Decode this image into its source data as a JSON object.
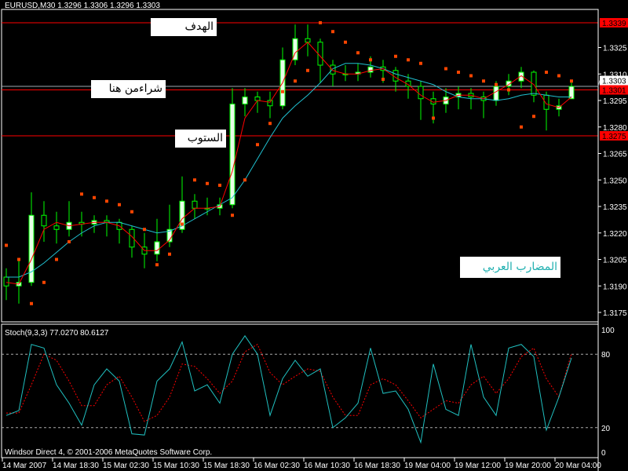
{
  "header": {
    "symbol_info": "EURUSD,M30  1.3296 1.3306 1.3296 1.3303"
  },
  "annotations": {
    "target": "الهدف",
    "buy_here": "شراءمن هنا",
    "stop": "الستوب",
    "watermark": "المضارب العربي"
  },
  "footer": {
    "copyright": "Windsor Direct 4, © 2001-2006 MetaQuotes Software Corp."
  },
  "colors": {
    "background": "#000000",
    "candle": "#00ff00",
    "fast_ma": "#ff0000",
    "slow_ma": "#20c0d0",
    "sar": "#ff4500",
    "level_line": "#ff0000",
    "bid_line": "#a0a8b0",
    "stoch_main": "#20c0c0",
    "stoch_signal": "#ff0000",
    "watermark_text": "#20b0b0"
  },
  "chart_data": [
    {
      "type": "candlestick",
      "title": "EURUSD,M30",
      "x_tick_labels": [
        "14 Mar 2007",
        "14 Mar 18:30",
        "15 Mar 02:30",
        "15 Mar 10:30",
        "15 Mar 18:30",
        "16 Mar 02:30",
        "16 Mar 10:30",
        "16 Mar 18:30",
        "19 Mar 04:00",
        "19 Mar 12:00",
        "19 Mar 20:00",
        "20 Mar 04:00"
      ],
      "y_tick_labels": [
        "1.3325",
        "1.3310",
        "1.3295",
        "1.3280",
        "1.3265",
        "1.3250",
        "1.3235",
        "1.3220",
        "1.3205",
        "1.3190",
        "1.3175"
      ],
      "ylim": [
        1.3168,
        1.3347
      ],
      "price_labels": [
        {
          "text": "1.3339",
          "value": 1.3339,
          "color": "#ff0000"
        },
        {
          "text": "1.3303",
          "value": 1.3303,
          "color": "#ffffff"
        },
        {
          "text": "1.3301",
          "value": 1.3301,
          "color": "#ff0000"
        },
        {
          "text": "1.3275",
          "value": 1.3275,
          "color": "#ff0000"
        }
      ],
      "horizontal_lines": [
        {
          "value": 1.3339,
          "color": "#ff0000"
        },
        {
          "value": 1.3303,
          "color": "#a0a8b0"
        },
        {
          "value": 1.3301,
          "color": "#ff0000"
        },
        {
          "value": 1.3275,
          "color": "#ff0000"
        }
      ],
      "ohlc": [
        [
          1.3195,
          1.32,
          1.3182,
          1.319
        ],
        [
          1.319,
          1.3205,
          1.318,
          1.3192
        ],
        [
          1.3192,
          1.3243,
          1.319,
          1.323
        ],
        [
          1.323,
          1.3238,
          1.3215,
          1.3224
        ],
        [
          1.3224,
          1.3232,
          1.3214,
          1.3222
        ],
        [
          1.3222,
          1.3238,
          1.3218,
          1.3226
        ],
        [
          1.3226,
          1.3232,
          1.3218,
          1.3225
        ],
        [
          1.3225,
          1.323,
          1.322,
          1.3227
        ],
        [
          1.3227,
          1.323,
          1.3218,
          1.3226
        ],
        [
          1.3226,
          1.3228,
          1.3214,
          1.3222
        ],
        [
          1.3222,
          1.3224,
          1.3206,
          1.3212
        ],
        [
          1.3212,
          1.322,
          1.32,
          1.3208
        ],
        [
          1.3208,
          1.3228,
          1.3204,
          1.3215
        ],
        [
          1.3215,
          1.3236,
          1.3212,
          1.3222
        ],
        [
          1.3222,
          1.3252,
          1.322,
          1.3238
        ],
        [
          1.3238,
          1.3242,
          1.3228,
          1.3234
        ],
        [
          1.3234,
          1.324,
          1.323,
          1.3234
        ],
        [
          1.3234,
          1.324,
          1.323,
          1.3236
        ],
        [
          1.3236,
          1.3302,
          1.3234,
          1.3293
        ],
        [
          1.3293,
          1.3302,
          1.3286,
          1.3297
        ],
        [
          1.3297,
          1.33,
          1.3288,
          1.3295
        ],
        [
          1.3295,
          1.33,
          1.3285,
          1.3292
        ],
        [
          1.3292,
          1.3325,
          1.329,
          1.3318
        ],
        [
          1.3318,
          1.3338,
          1.3315,
          1.333
        ],
        [
          1.333,
          1.3338,
          1.332,
          1.3328
        ],
        [
          1.3328,
          1.333,
          1.3305,
          1.3315
        ],
        [
          1.3315,
          1.3318,
          1.3303,
          1.331
        ],
        [
          1.331,
          1.3315,
          1.3306,
          1.331
        ],
        [
          1.331,
          1.3316,
          1.3306,
          1.3311
        ],
        [
          1.3311,
          1.332,
          1.3308,
          1.3314
        ],
        [
          1.3314,
          1.3318,
          1.3305,
          1.3312
        ],
        [
          1.3312,
          1.3314,
          1.33,
          1.3306
        ],
        [
          1.3306,
          1.331,
          1.3296,
          1.3303
        ],
        [
          1.3303,
          1.3306,
          1.3284,
          1.3296
        ],
        [
          1.3296,
          1.33,
          1.3282,
          1.3293
        ],
        [
          1.3293,
          1.3302,
          1.3288,
          1.3297
        ],
        [
          1.3297,
          1.3303,
          1.329,
          1.3299
        ],
        [
          1.3299,
          1.3302,
          1.329,
          1.3297
        ],
        [
          1.3297,
          1.33,
          1.3285,
          1.3295
        ],
        [
          1.3295,
          1.3306,
          1.3292,
          1.3303
        ],
        [
          1.3303,
          1.331,
          1.3298,
          1.3306
        ],
        [
          1.3306,
          1.3314,
          1.3302,
          1.3311
        ],
        [
          1.3311,
          1.3312,
          1.3294,
          1.3298
        ],
        [
          1.3298,
          1.33,
          1.3278,
          1.329
        ],
        [
          1.329,
          1.3296,
          1.3286,
          1.3292
        ],
        [
          1.3296,
          1.3306,
          1.3296,
          1.3303
        ]
      ],
      "fast_ma": [
        1.3192,
        1.3191,
        1.3205,
        1.3222,
        1.3226,
        1.3224,
        1.3225,
        1.3226,
        1.3226,
        1.3224,
        1.3218,
        1.321,
        1.321,
        1.3216,
        1.3228,
        1.3234,
        1.3234,
        1.3235,
        1.3255,
        1.3285,
        1.3295,
        1.3294,
        1.3305,
        1.3322,
        1.3328,
        1.332,
        1.3312,
        1.331,
        1.331,
        1.3312,
        1.3313,
        1.3308,
        1.3304,
        1.3298,
        1.3294,
        1.3295,
        1.3298,
        1.3298,
        1.3296,
        1.33,
        1.3304,
        1.3309,
        1.3304,
        1.3293,
        1.3291,
        1.3297
      ],
      "slow_ma": [
        1.3195,
        1.3195,
        1.3198,
        1.3203,
        1.3209,
        1.3215,
        1.322,
        1.3224,
        1.3226,
        1.3226,
        1.3224,
        1.3222,
        1.322,
        1.3221,
        1.3224,
        1.3228,
        1.3232,
        1.3236,
        1.324,
        1.325,
        1.3262,
        1.3274,
        1.3285,
        1.3292,
        1.3298,
        1.3305,
        1.3313,
        1.3316,
        1.3316,
        1.3315,
        1.3313,
        1.331,
        1.3308,
        1.3306,
        1.3304,
        1.33,
        1.3297,
        1.3296,
        1.3296,
        1.3295,
        1.3296,
        1.3298,
        1.3299,
        1.3298,
        1.3297,
        1.3297
      ],
      "parabolic_sar": [
        1.3213,
        1.3205,
        1.318,
        1.3192,
        1.3205,
        1.3215,
        1.3242,
        1.324,
        1.3238,
        1.3236,
        1.3232,
        1.3222,
        1.3202,
        1.3208,
        1.3225,
        1.325,
        1.3248,
        1.3247,
        1.323,
        1.325,
        1.327,
        1.3282,
        1.33,
        1.3306,
        1.3312,
        1.3339,
        1.3334,
        1.3328,
        1.3322,
        1.3318,
        1.3307,
        1.332,
        1.3318,
        1.3316,
        1.3285,
        1.3313,
        1.3311,
        1.3309,
        1.3306,
        1.3304,
        1.3301,
        1.328,
        1.3286,
        1.3311,
        1.3309,
        1.3306
      ]
    },
    {
      "type": "line",
      "title": "Stoch(9,3,3) 77.0270 80.6127",
      "ylim": [
        0,
        100
      ],
      "y_tick_labels": [
        "100",
        "80",
        "20",
        "0"
      ],
      "levels": [
        80,
        20
      ],
      "main": [
        30,
        34,
        88,
        85,
        55,
        40,
        22,
        55,
        68,
        58,
        15,
        14,
        58,
        68,
        90,
        50,
        55,
        40,
        80,
        95,
        80,
        30,
        60,
        75,
        62,
        68,
        20,
        28,
        40,
        85,
        48,
        50,
        35,
        8,
        72,
        35,
        30,
        88,
        45,
        30,
        85,
        88,
        78,
        18,
        45,
        77
      ],
      "signal": [
        32,
        32,
        55,
        80,
        75,
        58,
        38,
        38,
        55,
        62,
        45,
        25,
        30,
        45,
        72,
        70,
        60,
        48,
        58,
        82,
        88,
        65,
        55,
        62,
        68,
        66,
        45,
        30,
        30,
        55,
        60,
        55,
        42,
        28,
        35,
        42,
        40,
        55,
        62,
        48,
        60,
        78,
        85,
        60,
        45,
        80.6
      ]
    }
  ]
}
